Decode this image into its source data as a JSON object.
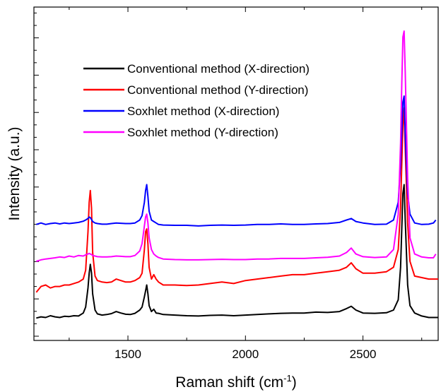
{
  "chart_data": {
    "type": "line",
    "xlabel": "Raman shift (cm",
    "xlabel_sup": "-1",
    "xlabel_close": ")",
    "ylabel": "Intensity (a.u.)",
    "xlim": [
      1100,
      2820
    ],
    "ylim": [
      0,
      1
    ],
    "y_ticks_labeled": false,
    "x_ticks": [
      1500,
      2000,
      2500
    ],
    "x_tick_labels": [
      "1500",
      "2000",
      "2500"
    ],
    "grid": false,
    "legend_position": "top-left",
    "series": [
      {
        "name": "Conventional method (X-direction)",
        "color": "#000000",
        "x": [
          1110,
          1130,
          1150,
          1170,
          1190,
          1210,
          1230,
          1250,
          1270,
          1290,
          1310,
          1320,
          1330,
          1335,
          1340,
          1345,
          1350,
          1360,
          1370,
          1390,
          1410,
          1430,
          1450,
          1470,
          1490,
          1510,
          1530,
          1550,
          1560,
          1570,
          1575,
          1580,
          1585,
          1590,
          1600,
          1610,
          1620,
          1630,
          1650,
          1700,
          1750,
          1800,
          1850,
          1900,
          1950,
          2000,
          2050,
          2100,
          2150,
          2200,
          2250,
          2300,
          2350,
          2400,
          2430,
          2450,
          2470,
          2500,
          2550,
          2600,
          2630,
          2650,
          2660,
          2665,
          2670,
          2675,
          2680,
          2690,
          2700,
          2720,
          2750,
          2780,
          2820
        ],
        "values": [
          0.028,
          0.032,
          0.03,
          0.036,
          0.032,
          0.03,
          0.034,
          0.033,
          0.036,
          0.035,
          0.045,
          0.065,
          0.13,
          0.18,
          0.21,
          0.18,
          0.11,
          0.055,
          0.042,
          0.038,
          0.04,
          0.043,
          0.05,
          0.045,
          0.041,
          0.04,
          0.044,
          0.055,
          0.065,
          0.1,
          0.12,
          0.14,
          0.11,
          0.07,
          0.05,
          0.058,
          0.045,
          0.044,
          0.04,
          0.038,
          0.036,
          0.035,
          0.037,
          0.038,
          0.036,
          0.038,
          0.04,
          0.042,
          0.044,
          0.045,
          0.045,
          0.048,
          0.047,
          0.05,
          0.06,
          0.068,
          0.055,
          0.045,
          0.044,
          0.046,
          0.055,
          0.09,
          0.2,
          0.33,
          0.45,
          0.48,
          0.36,
          0.14,
          0.07,
          0.045,
          0.035,
          0.03,
          0.03
        ]
      },
      {
        "name": "Conventional method (Y-direction)",
        "color": "#ff0000",
        "x": [
          1110,
          1130,
          1150,
          1170,
          1190,
          1210,
          1230,
          1250,
          1270,
          1290,
          1310,
          1320,
          1330,
          1335,
          1340,
          1345,
          1350,
          1360,
          1370,
          1390,
          1410,
          1430,
          1450,
          1470,
          1490,
          1510,
          1530,
          1550,
          1560,
          1570,
          1575,
          1580,
          1585,
          1590,
          1600,
          1610,
          1620,
          1630,
          1650,
          1700,
          1750,
          1800,
          1850,
          1900,
          1950,
          2000,
          2050,
          2100,
          2150,
          2200,
          2250,
          2300,
          2350,
          2400,
          2430,
          2450,
          2470,
          2500,
          2550,
          2600,
          2630,
          2650,
          2660,
          2665,
          2670,
          2675,
          2680,
          2690,
          2700,
          2720,
          2750,
          2780,
          2820
        ],
        "values": [
          0.115,
          0.135,
          0.14,
          0.13,
          0.135,
          0.135,
          0.14,
          0.14,
          0.145,
          0.15,
          0.16,
          0.19,
          0.32,
          0.42,
          0.46,
          0.4,
          0.25,
          0.17,
          0.155,
          0.15,
          0.148,
          0.15,
          0.16,
          0.155,
          0.15,
          0.15,
          0.155,
          0.165,
          0.18,
          0.26,
          0.32,
          0.33,
          0.28,
          0.2,
          0.16,
          0.175,
          0.16,
          0.15,
          0.14,
          0.14,
          0.138,
          0.14,
          0.145,
          0.15,
          0.145,
          0.155,
          0.16,
          0.165,
          0.17,
          0.175,
          0.175,
          0.18,
          0.185,
          0.19,
          0.2,
          0.215,
          0.195,
          0.18,
          0.18,
          0.185,
          0.2,
          0.26,
          0.4,
          0.55,
          0.68,
          0.74,
          0.6,
          0.35,
          0.22,
          0.17,
          0.165,
          0.16,
          0.16
        ]
      },
      {
        "name": "Soxhlet method (X-direction)",
        "color": "#0000ff",
        "x": [
          1110,
          1130,
          1150,
          1170,
          1190,
          1210,
          1230,
          1250,
          1270,
          1290,
          1310,
          1320,
          1330,
          1335,
          1340,
          1345,
          1350,
          1360,
          1370,
          1390,
          1410,
          1430,
          1450,
          1470,
          1490,
          1510,
          1530,
          1550,
          1560,
          1570,
          1575,
          1580,
          1585,
          1590,
          1600,
          1610,
          1620,
          1630,
          1650,
          1700,
          1750,
          1800,
          1850,
          1900,
          1950,
          2000,
          2050,
          2100,
          2150,
          2200,
          2250,
          2300,
          2350,
          2400,
          2430,
          2450,
          2470,
          2500,
          2550,
          2600,
          2630,
          2650,
          2660,
          2665,
          2670,
          2675,
          2680,
          2690,
          2700,
          2720,
          2750,
          2780,
          2800,
          2810
        ],
        "values": [
          0.345,
          0.35,
          0.345,
          0.348,
          0.35,
          0.347,
          0.35,
          0.348,
          0.35,
          0.352,
          0.356,
          0.36,
          0.365,
          0.37,
          0.368,
          0.362,
          0.355,
          0.35,
          0.348,
          0.346,
          0.346,
          0.348,
          0.35,
          0.349,
          0.348,
          0.348,
          0.35,
          0.36,
          0.375,
          0.42,
          0.46,
          0.48,
          0.44,
          0.39,
          0.36,
          0.355,
          0.35,
          0.345,
          0.343,
          0.342,
          0.342,
          0.34,
          0.342,
          0.343,
          0.342,
          0.343,
          0.345,
          0.345,
          0.347,
          0.345,
          0.345,
          0.347,
          0.348,
          0.352,
          0.36,
          0.365,
          0.355,
          0.35,
          0.345,
          0.346,
          0.36,
          0.42,
          0.55,
          0.66,
          0.76,
          0.78,
          0.65,
          0.45,
          0.38,
          0.35,
          0.345,
          0.346,
          0.35,
          0.36
        ]
      },
      {
        "name": "Soxhlet method (Y-direction)",
        "color": "#ff00ff",
        "x": [
          1110,
          1130,
          1150,
          1170,
          1190,
          1210,
          1230,
          1250,
          1270,
          1290,
          1310,
          1320,
          1330,
          1335,
          1340,
          1345,
          1350,
          1360,
          1370,
          1390,
          1410,
          1430,
          1450,
          1470,
          1490,
          1510,
          1530,
          1550,
          1560,
          1570,
          1575,
          1580,
          1585,
          1590,
          1600,
          1610,
          1620,
          1630,
          1650,
          1700,
          1750,
          1800,
          1850,
          1900,
          1950,
          2000,
          2050,
          2100,
          2150,
          2200,
          2250,
          2300,
          2350,
          2400,
          2430,
          2450,
          2470,
          2500,
          2550,
          2600,
          2630,
          2650,
          2660,
          2665,
          2670,
          2675,
          2680,
          2690,
          2700,
          2720,
          2750,
          2780,
          2800,
          2810
        ],
        "values": [
          0.22,
          0.225,
          0.228,
          0.23,
          0.232,
          0.235,
          0.233,
          0.238,
          0.235,
          0.24,
          0.238,
          0.242,
          0.245,
          0.247,
          0.245,
          0.243,
          0.24,
          0.238,
          0.236,
          0.235,
          0.235,
          0.236,
          0.238,
          0.237,
          0.236,
          0.236,
          0.24,
          0.255,
          0.28,
          0.34,
          0.37,
          0.38,
          0.35,
          0.3,
          0.26,
          0.245,
          0.238,
          0.233,
          0.228,
          0.226,
          0.225,
          0.225,
          0.226,
          0.227,
          0.226,
          0.226,
          0.228,
          0.228,
          0.23,
          0.23,
          0.23,
          0.232,
          0.234,
          0.238,
          0.25,
          0.265,
          0.245,
          0.236,
          0.233,
          0.235,
          0.26,
          0.38,
          0.62,
          0.82,
          0.98,
          1.0,
          0.86,
          0.5,
          0.3,
          0.245,
          0.235,
          0.232,
          0.232,
          0.245
        ]
      }
    ]
  }
}
